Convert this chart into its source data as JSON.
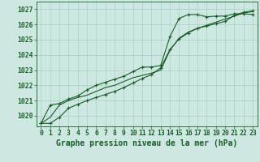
{
  "title": "Graphe pression niveau de la mer (hPa)",
  "hours": [
    0,
    1,
    2,
    3,
    4,
    5,
    6,
    7,
    8,
    9,
    10,
    11,
    12,
    13,
    14,
    15,
    16,
    17,
    18,
    19,
    20,
    21,
    22,
    23
  ],
  "ylim": [
    1019.3,
    1027.5
  ],
  "yticks": [
    1020,
    1021,
    1022,
    1023,
    1024,
    1025,
    1026,
    1027
  ],
  "bg_color": "#cce8e0",
  "grid_color": "#aacfc8",
  "line_color": "#1a5c2a",
  "series_steep": [
    1019.5,
    1020.7,
    1020.8,
    1021.1,
    1021.3,
    1021.7,
    1022.0,
    1022.2,
    1022.4,
    1022.6,
    1022.9,
    1023.2,
    1023.2,
    1023.3,
    1025.2,
    1026.4,
    1026.65,
    1026.65,
    1026.5,
    1026.55,
    1026.55,
    1026.7,
    1026.7,
    1026.65
  ],
  "series_mid": [
    1019.5,
    1019.9,
    1020.7,
    1021.0,
    1021.2,
    1021.35,
    1021.6,
    1021.85,
    1022.0,
    1022.25,
    1022.5,
    1022.65,
    1022.8,
    1023.0,
    1024.3,
    1025.1,
    1025.5,
    1025.75,
    1025.95,
    1026.15,
    1026.35,
    1026.55,
    1026.75,
    1026.85
  ],
  "series_linear": [
    1019.5,
    1019.5,
    1019.9,
    1020.5,
    1020.75,
    1021.0,
    1021.2,
    1021.4,
    1021.6,
    1021.85,
    1022.15,
    1022.45,
    1022.7,
    1023.15,
    1024.35,
    1025.05,
    1025.45,
    1025.75,
    1025.9,
    1026.05,
    1026.2,
    1026.6,
    1026.8,
    1026.9
  ],
  "title_fontsize": 7.0,
  "tick_fontsize": 5.8
}
